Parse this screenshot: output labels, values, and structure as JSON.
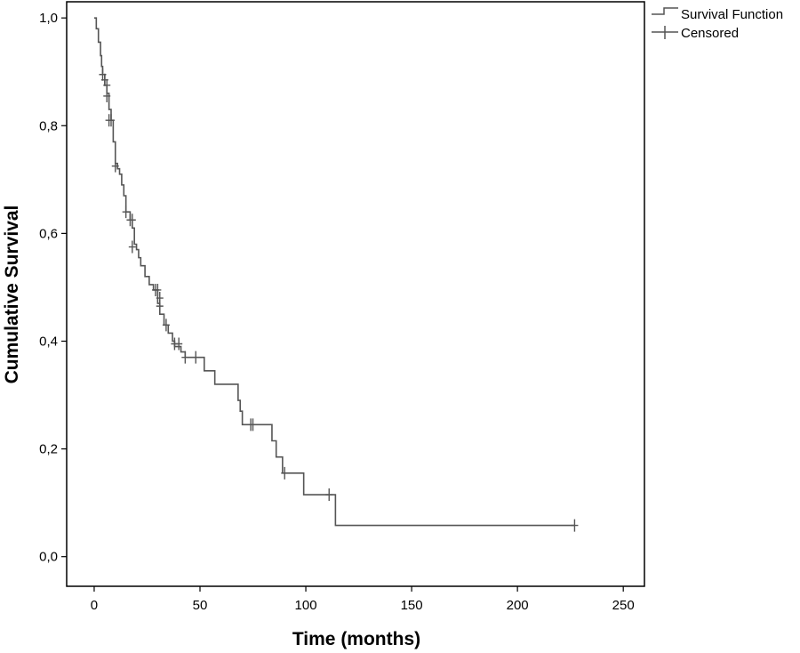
{
  "chart_data": {
    "type": "line",
    "title": "",
    "xlabel": "Time (months)",
    "ylabel": "Cumulative Survival",
    "xlim": [
      -13,
      260
    ],
    "ylim": [
      -0.055,
      1.03
    ],
    "x_ticks": [
      {
        "value": 0,
        "label": "0"
      },
      {
        "value": 50,
        "label": "50"
      },
      {
        "value": 100,
        "label": "100"
      },
      {
        "value": 150,
        "label": "150"
      },
      {
        "value": 200,
        "label": "200"
      },
      {
        "value": 250,
        "label": "250"
      }
    ],
    "y_ticks": [
      {
        "value": 0.0,
        "label": "0,0"
      },
      {
        "value": 0.2,
        "label": "0,2"
      },
      {
        "value": 0.4,
        "label": "0,4"
      },
      {
        "value": 0.6,
        "label": "0,6"
      },
      {
        "value": 0.8,
        "label": "0,8"
      },
      {
        "value": 1.0,
        "label": "1,0"
      }
    ],
    "grid": false,
    "legend_position": "top-right, outside plot",
    "legend": [
      {
        "label": "Survival Function",
        "symbol": "step-line"
      },
      {
        "label": "Censored",
        "symbol": "plus"
      }
    ],
    "series": [
      {
        "name": "Survival Function",
        "kind": "step",
        "color": "#555555",
        "points": [
          [
            0,
            1.0
          ],
          [
            1,
            0.98
          ],
          [
            2,
            0.955
          ],
          [
            3,
            0.93
          ],
          [
            3.5,
            0.91
          ],
          [
            4,
            0.895
          ],
          [
            5,
            0.875
          ],
          [
            6,
            0.86
          ],
          [
            7,
            0.83
          ],
          [
            8,
            0.81
          ],
          [
            9,
            0.77
          ],
          [
            10,
            0.73
          ],
          [
            11,
            0.72
          ],
          [
            12,
            0.71
          ],
          [
            13,
            0.69
          ],
          [
            14,
            0.67
          ],
          [
            15,
            0.64
          ],
          [
            17,
            0.625
          ],
          [
            18,
            0.61
          ],
          [
            19,
            0.58
          ],
          [
            20,
            0.57
          ],
          [
            21,
            0.555
          ],
          [
            22,
            0.54
          ],
          [
            24,
            0.52
          ],
          [
            26,
            0.505
          ],
          [
            28,
            0.495
          ],
          [
            30,
            0.47
          ],
          [
            31,
            0.45
          ],
          [
            33,
            0.43
          ],
          [
            35,
            0.415
          ],
          [
            37,
            0.4
          ],
          [
            38,
            0.39
          ],
          [
            41,
            0.38
          ],
          [
            43,
            0.37
          ],
          [
            52,
            0.345
          ],
          [
            57,
            0.32
          ],
          [
            68,
            0.29
          ],
          [
            69,
            0.27
          ],
          [
            70,
            0.245
          ],
          [
            84,
            0.215
          ],
          [
            86,
            0.185
          ],
          [
            89,
            0.155
          ],
          [
            99,
            0.115
          ],
          [
            114,
            0.058
          ],
          [
            227,
            0.058
          ]
        ]
      }
    ],
    "censored": [
      [
        4,
        0.895
      ],
      [
        5,
        0.885
      ],
      [
        6,
        0.875
      ],
      [
        6,
        0.855
      ],
      [
        7,
        0.81
      ],
      [
        8,
        0.81
      ],
      [
        10,
        0.725
      ],
      [
        15,
        0.64
      ],
      [
        17,
        0.625
      ],
      [
        18,
        0.625
      ],
      [
        18,
        0.575
      ],
      [
        29,
        0.495
      ],
      [
        30,
        0.495
      ],
      [
        31,
        0.48
      ],
      [
        31,
        0.465
      ],
      [
        34,
        0.43
      ],
      [
        38,
        0.395
      ],
      [
        40,
        0.395
      ],
      [
        43,
        0.37
      ],
      [
        48,
        0.37
      ],
      [
        74,
        0.245
      ],
      [
        75,
        0.245
      ],
      [
        90,
        0.155
      ],
      [
        111,
        0.115
      ],
      [
        227,
        0.058
      ]
    ]
  }
}
